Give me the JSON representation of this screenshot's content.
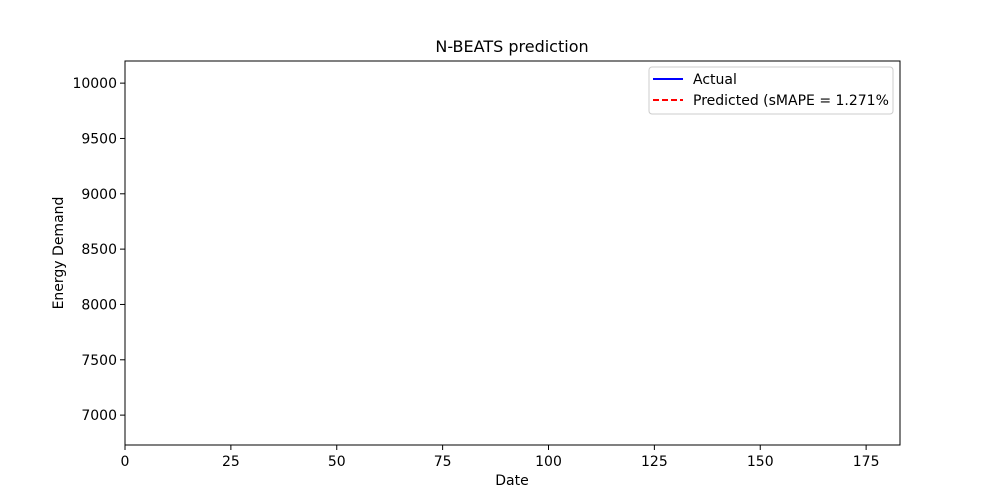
{
  "chart_data": {
    "type": "line",
    "title": "N-BEATS prediction",
    "xlabel": "Date",
    "ylabel": "Energy Demand",
    "xlim": [
      0,
      183
    ],
    "ylim": [
      6730,
      10200
    ],
    "x_ticks": [
      0,
      25,
      50,
      75,
      100,
      125,
      150,
      175
    ],
    "y_ticks": [
      7000,
      7500,
      8000,
      8500,
      9000,
      9500,
      10000
    ],
    "grid": false,
    "legend_position": "top-right",
    "series": [
      {
        "name": "Actual",
        "color": "#0000ff",
        "style": "solid",
        "x": [],
        "y": []
      },
      {
        "name": "Predicted (sMAPE = 1.271%",
        "color": "#ff0000",
        "style": "dashed",
        "x": [],
        "y": []
      }
    ]
  }
}
